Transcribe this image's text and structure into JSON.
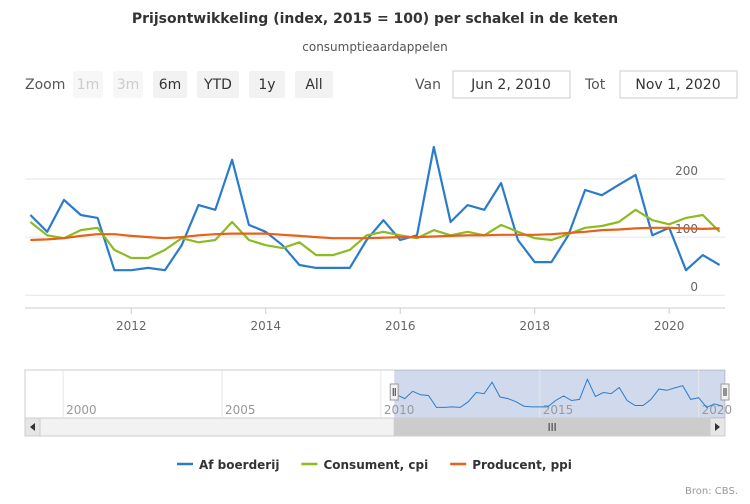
{
  "chart_data": {
    "type": "line",
    "title": "Prijsontwikkeling (index, 2015 = 100) per schakel in de keten",
    "subtitle": "consumptieaardappelen",
    "range_selector": {
      "label": "Zoom",
      "buttons": [
        "1m",
        "3m",
        "6m",
        "YTD",
        "1y",
        "All"
      ],
      "from_label": "Van",
      "from": "Jun 2, 2010",
      "to_label": "Tot",
      "to": "Nov 1, 2020"
    },
    "x": [
      2010.5,
      2010.75,
      2011,
      2011.25,
      2011.5,
      2011.75,
      2012,
      2012.25,
      2012.5,
      2012.75,
      2013,
      2013.25,
      2013.5,
      2013.75,
      2014,
      2014.25,
      2014.5,
      2014.75,
      2015,
      2015.25,
      2015.5,
      2015.75,
      2016,
      2016.25,
      2016.5,
      2016.75,
      2017,
      2017.25,
      2017.5,
      2017.75,
      2018,
      2018.25,
      2018.5,
      2018.75,
      2019,
      2019.25,
      2019.5,
      2019.75,
      2020,
      2020.25,
      2020.5,
      2020.75
    ],
    "series": [
      {
        "name": "Af boerderij",
        "color": "#2b7bcc",
        "values": [
          138,
          109,
          164,
          138,
          133,
          43,
          43,
          47,
          43,
          86,
          155,
          147,
          233,
          121,
          109,
          86,
          52,
          47,
          47,
          47,
          95,
          129,
          95,
          103,
          255,
          126,
          155,
          147,
          193,
          95,
          57,
          57,
          103,
          181,
          172,
          190,
          207,
          103,
          116,
          43,
          69,
          52
        ]
      },
      {
        "name": "Consument, cpi",
        "color": "#8bbc21",
        "values": [
          126,
          103,
          98,
          112,
          116,
          78,
          64,
          64,
          78,
          98,
          91,
          95,
          126,
          95,
          86,
          81,
          91,
          69,
          69,
          78,
          103,
          109,
          103,
          98,
          112,
          103,
          109,
          103,
          121,
          109,
          98,
          95,
          105,
          116,
          119,
          126,
          147,
          129,
          122,
          133,
          138,
          109
        ]
      },
      {
        "name": "Producent, ppi",
        "color": "#e8601a",
        "values": [
          95,
          96,
          98,
          102,
          105,
          105,
          102,
          100,
          98,
          100,
          103,
          105,
          106,
          106,
          106,
          104,
          102,
          100,
          98,
          98,
          98,
          99,
          100,
          100,
          101,
          102,
          103,
          103,
          104,
          104,
          104,
          105,
          107,
          109,
          112,
          113,
          115,
          116,
          116,
          115,
          114,
          115
        ]
      }
    ],
    "xlim": [
      2010.42,
      2020.83
    ],
    "xticks": [
      2012,
      2014,
      2016,
      2018,
      2020
    ],
    "ylim": [
      -22,
      310
    ],
    "yticks": [
      0,
      100,
      200
    ],
    "grid": true,
    "navigator": {
      "xlim": [
        1998.8,
        2020.83
      ],
      "xticks": [
        2000,
        2005,
        2010,
        2015,
        2020
      ]
    },
    "legend": "bottom",
    "credit": "Bron: CBS."
  }
}
